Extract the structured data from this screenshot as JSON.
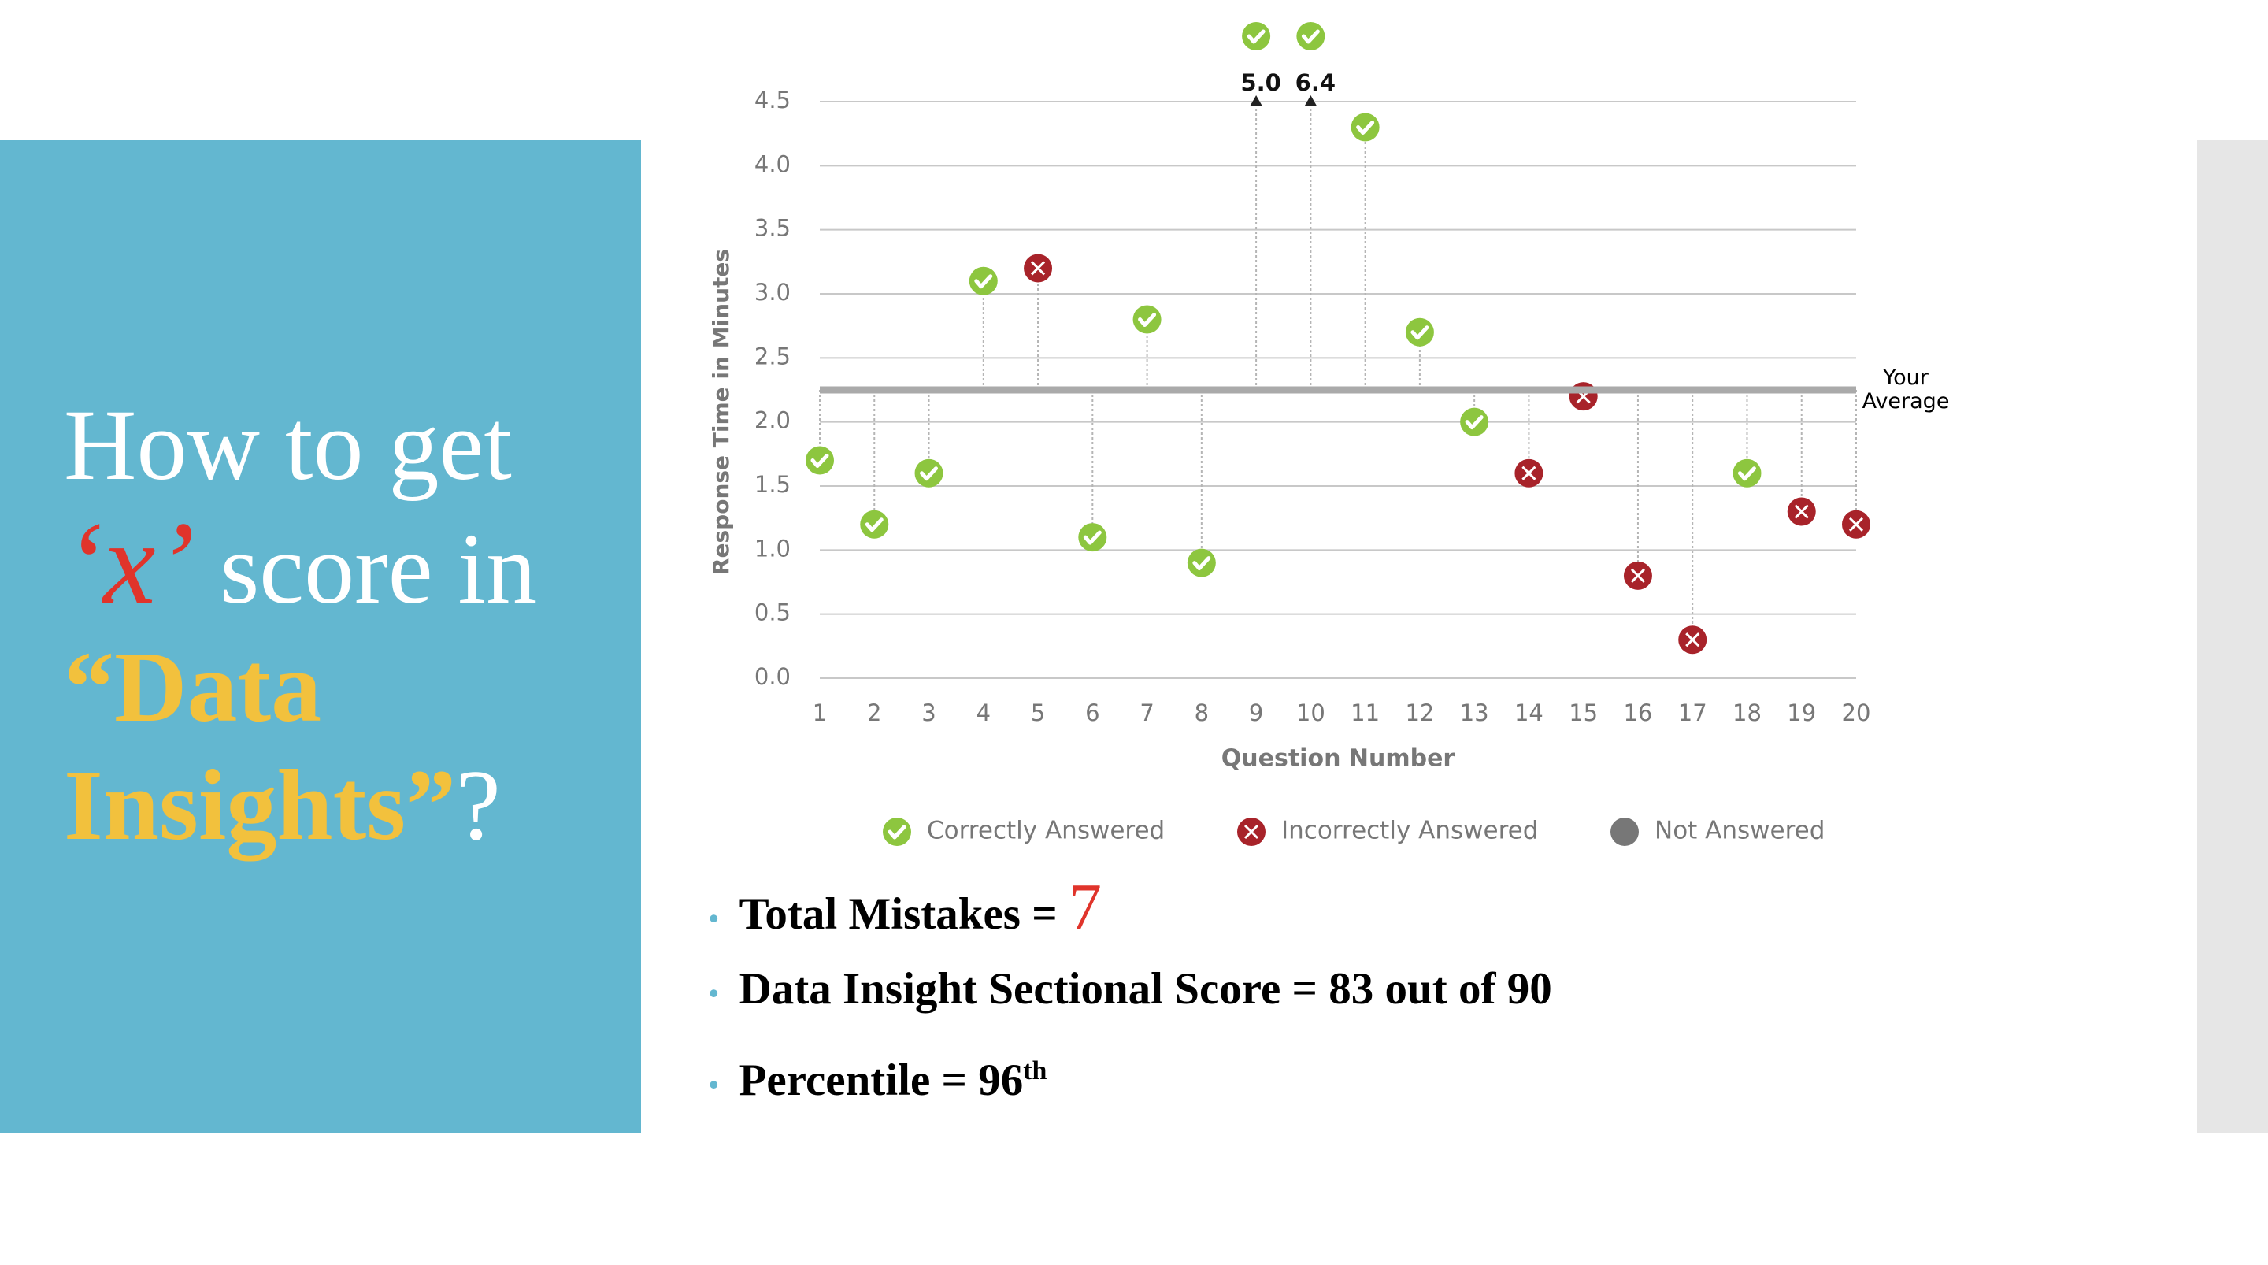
{
  "slide": {
    "title": [
      "How to get",
      "‘x’",
      "score in",
      "“Data Insights”",
      "?"
    ],
    "bullets": [
      {
        "label": "Total Mistakes =",
        "value": "7"
      },
      {
        "label": "Data Insight Sectional Score = 83 out of 90"
      },
      {
        "label": "Percentile = 96",
        "sup": "th"
      }
    ]
  },
  "chart_data": {
    "type": "scatter",
    "x_label": "Question Number",
    "y_label": "Response Time in Minutes",
    "x": [
      1,
      2,
      3,
      4,
      5,
      6,
      7,
      8,
      9,
      10,
      11,
      12,
      13,
      14,
      15,
      16,
      17,
      18,
      19,
      20
    ],
    "xlim": [
      1,
      20
    ],
    "xticks": [
      1,
      2,
      3,
      4,
      5,
      6,
      7,
      8,
      9,
      10,
      11,
      12,
      13,
      14,
      15,
      16,
      17,
      18,
      19,
      20
    ],
    "ylim": [
      0,
      4.5
    ],
    "yticks": [
      {
        "value": 0,
        "label": "0.0"
      },
      0.5,
      {
        "value": 1,
        "label": "1.0"
      },
      1.5,
      {
        "value": 2,
        "label": "2.0"
      },
      2.5,
      {
        "value": 3,
        "label": "3.0"
      },
      3.5,
      {
        "value": 4,
        "label": "4.0"
      },
      4.5
    ],
    "grid": true,
    "average": {
      "value": 2.25,
      "label": "Your Average"
    },
    "series": [
      {
        "name": "Correctly Answered",
        "color": "#8dc63f",
        "marker": "check",
        "values": [
          1.7,
          1.2,
          1.6,
          3.1,
          null,
          1.1,
          2.8,
          0.9,
          5.0,
          6.4,
          4.3,
          2.7,
          2.0,
          null,
          null,
          null,
          null,
          1.6,
          null,
          null
        ],
        "value_labels": [
          null,
          null,
          null,
          null,
          null,
          null,
          null,
          null,
          "5.0",
          "6.4",
          null,
          null,
          null,
          null,
          null,
          null,
          null,
          null,
          null,
          null
        ]
      },
      {
        "name": "Incorrectly Answered",
        "color": "#a8232a",
        "marker": "cross",
        "values": [
          null,
          null,
          null,
          null,
          3.2,
          null,
          null,
          null,
          null,
          null,
          null,
          null,
          null,
          1.6,
          2.2,
          0.8,
          0.3,
          null,
          1.3,
          1.2
        ]
      },
      {
        "name": "Not Answered",
        "color": "#777777",
        "marker": "dot",
        "values": [
          null,
          null,
          null,
          null,
          null,
          null,
          null,
          null,
          null,
          null,
          null,
          null,
          null,
          null,
          null,
          null,
          null,
          null,
          null,
          null
        ]
      }
    ]
  }
}
